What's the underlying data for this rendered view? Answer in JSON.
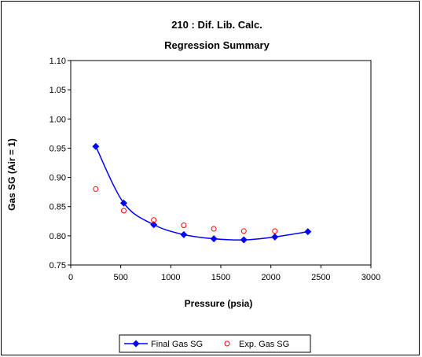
{
  "chart_data": {
    "type": "scatter",
    "title": "210 : Dif. Lib. Calc.",
    "subtitle": "Regression Summary",
    "xlabel": "Pressure (psia)",
    "ylabel": "Gas SG (Air = 1)",
    "xlim": [
      0,
      3000
    ],
    "ylim": [
      0.75,
      1.1
    ],
    "xticks": [
      "0",
      "500",
      "1000",
      "1500",
      "2000",
      "2500",
      "3000"
    ],
    "yticks": [
      "0.75",
      "0.80",
      "0.85",
      "0.90",
      "0.95",
      "1.00",
      "1.05",
      "1.10"
    ],
    "xtick_values": [
      0,
      500,
      1000,
      1500,
      2000,
      2500,
      3000
    ],
    "ytick_values": [
      0.75,
      0.8,
      0.85,
      0.9,
      0.95,
      1.0,
      1.05,
      1.1
    ],
    "grid": false,
    "legend_position": "bottom",
    "series": [
      {
        "name": "Final Gas SG",
        "kind": "line-marker",
        "marker": "diamond",
        "color": "#0000ff",
        "x": [
          250,
          530,
          830,
          1130,
          1430,
          1730,
          2040,
          2370
        ],
        "y": [
          0.953,
          0.856,
          0.819,
          0.802,
          0.795,
          0.793,
          0.798,
          0.807
        ]
      },
      {
        "name": "Exp. Gas SG",
        "kind": "marker",
        "marker": "circle-open",
        "color": "#ff0000",
        "x": [
          250,
          530,
          830,
          1130,
          1430,
          1730,
          2040
        ],
        "y": [
          0.88,
          0.843,
          0.827,
          0.818,
          0.812,
          0.808,
          0.808
        ]
      }
    ]
  }
}
